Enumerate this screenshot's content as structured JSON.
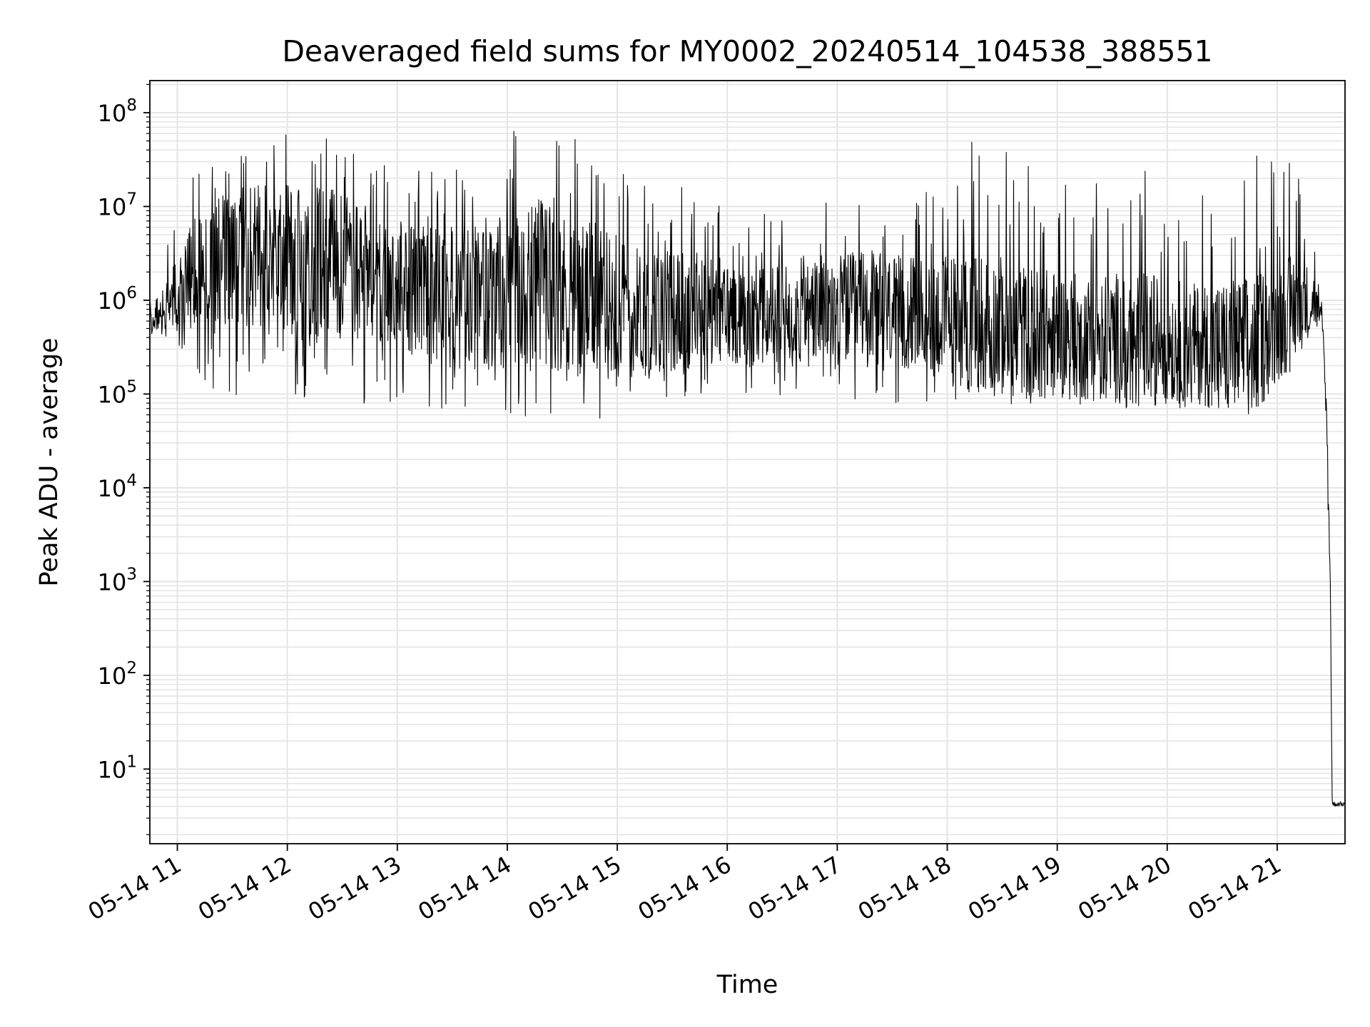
{
  "chart_data": {
    "type": "line",
    "title": "Deaveraged field sums for MY0002_20240514_104538_388551",
    "xlabel": "Time",
    "ylabel": "Peak ADU - average",
    "yscale": "log",
    "ylim": [
      1.6,
      220000000.0
    ],
    "xlim": [
      "2024-05-14 10:45",
      "2024-05-14 21:37"
    ],
    "grid": true,
    "colors": {
      "line": "#000000",
      "grid": "#e5e5e5",
      "axes": "#000000",
      "background": "#ffffff"
    },
    "x_ticks": [
      {
        "t": "2024-05-14 11:00",
        "label": "05-14 11"
      },
      {
        "t": "2024-05-14 12:00",
        "label": "05-14 12"
      },
      {
        "t": "2024-05-14 13:00",
        "label": "05-14 13"
      },
      {
        "t": "2024-05-14 14:00",
        "label": "05-14 14"
      },
      {
        "t": "2024-05-14 15:00",
        "label": "05-14 15"
      },
      {
        "t": "2024-05-14 16:00",
        "label": "05-14 16"
      },
      {
        "t": "2024-05-14 17:00",
        "label": "05-14 17"
      },
      {
        "t": "2024-05-14 18:00",
        "label": "05-14 18"
      },
      {
        "t": "2024-05-14 19:00",
        "label": "05-14 19"
      },
      {
        "t": "2024-05-14 20:00",
        "label": "05-14 20"
      },
      {
        "t": "2024-05-14 21:00",
        "label": "05-14 21"
      }
    ],
    "y_ticks": [
      {
        "value": 10,
        "base": "10",
        "exp": "1"
      },
      {
        "value": 100,
        "base": "10",
        "exp": "2"
      },
      {
        "value": 1000,
        "base": "10",
        "exp": "3"
      },
      {
        "value": 10000,
        "base": "10",
        "exp": "4"
      },
      {
        "value": 100000,
        "base": "10",
        "exp": "5"
      },
      {
        "value": 1000000,
        "base": "10",
        "exp": "6"
      },
      {
        "value": 10000000,
        "base": "10",
        "exp": "7"
      },
      {
        "value": 100000000,
        "base": "10",
        "exp": "8"
      }
    ],
    "series": [
      {
        "style": "noisy signal envelope (approximate)",
        "points": [
          {
            "t": "2024-05-14 10:45",
            "base": 600000,
            "low": 380000,
            "high": 1100000
          },
          {
            "t": "2024-05-14 10:55",
            "base": 900000,
            "low": 400000,
            "high": 4000000
          },
          {
            "t": "2024-05-14 11:10",
            "base": 2000000,
            "low": 90000,
            "high": 25000000
          },
          {
            "t": "2024-05-14 11:40",
            "base": 3000000,
            "low": 80000,
            "high": 60000000
          },
          {
            "t": "2024-05-14 12:15",
            "base": 2500000,
            "low": 80000,
            "high": 70000000
          },
          {
            "t": "2024-05-14 12:45",
            "base": 2000000,
            "low": 75000,
            "high": 30000000
          },
          {
            "t": "2024-05-14 13:15",
            "base": 1200000,
            "low": 65000,
            "high": 25000000
          },
          {
            "t": "2024-05-14 13:45",
            "base": 1000000,
            "low": 70000,
            "high": 50000000
          },
          {
            "t": "2024-05-14 14:15",
            "base": 1500000,
            "low": 55000,
            "high": 90000000
          },
          {
            "t": "2024-05-14 14:45",
            "base": 1000000,
            "low": 50000,
            "high": 50000000
          },
          {
            "t": "2024-05-14 15:15",
            "base": 700000,
            "low": 80000,
            "high": 30000000
          },
          {
            "t": "2024-05-14 15:45",
            "base": 800000,
            "low": 90000,
            "high": 15000000
          },
          {
            "t": "2024-05-14 16:15",
            "base": 700000,
            "low": 100000,
            "high": 8000000
          },
          {
            "t": "2024-05-14 16:45",
            "base": 800000,
            "low": 90000,
            "high": 10000000
          },
          {
            "t": "2024-05-14 17:15",
            "base": 800000,
            "low": 80000,
            "high": 15000000
          },
          {
            "t": "2024-05-14 17:45",
            "base": 700000,
            "low": 80000,
            "high": 12000000
          },
          {
            "t": "2024-05-14 18:15",
            "base": 600000,
            "low": 80000,
            "high": 60000000
          },
          {
            "t": "2024-05-14 18:45",
            "base": 450000,
            "low": 75000,
            "high": 30000000
          },
          {
            "t": "2024-05-14 19:15",
            "base": 400000,
            "low": 70000,
            "high": 20000000
          },
          {
            "t": "2024-05-14 19:45",
            "base": 400000,
            "low": 70000,
            "high": 30000000
          },
          {
            "t": "2024-05-14 20:15",
            "base": 350000,
            "low": 70000,
            "high": 15000000
          },
          {
            "t": "2024-05-14 20:45",
            "base": 300000,
            "low": 55000,
            "high": 40000000
          },
          {
            "t": "2024-05-14 21:10",
            "base": 900000,
            "low": 200000,
            "high": 30000000
          },
          {
            "t": "2024-05-14 21:20",
            "base": 1000000,
            "low": 500000,
            "high": 6000000
          },
          {
            "t": "2024-05-14 21:25",
            "base": 500000,
            "low": 300000,
            "high": 700000
          },
          {
            "t": "2024-05-14 21:27",
            "base": 50000,
            "low": 20000,
            "high": 80000
          },
          {
            "t": "2024-05-14 21:29",
            "base": 1000,
            "low": 500,
            "high": 2000
          },
          {
            "t": "2024-05-14 21:30",
            "base": 4,
            "low": 4,
            "high": 4.5
          },
          {
            "t": "2024-05-14 21:37",
            "base": 4,
            "low": 4,
            "high": 4.5
          }
        ]
      }
    ]
  }
}
